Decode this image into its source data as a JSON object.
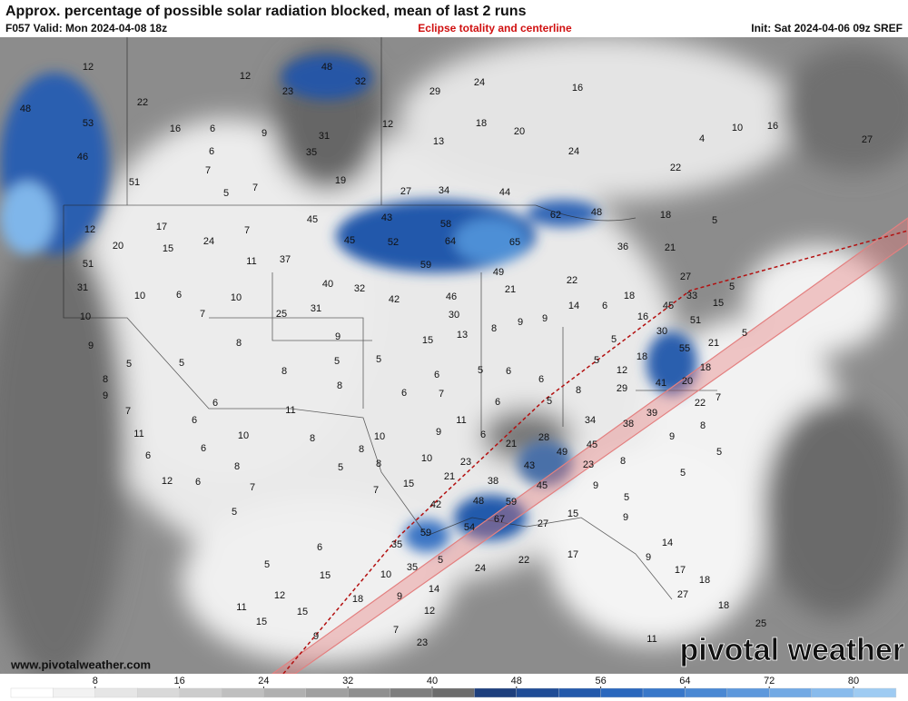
{
  "header": {
    "title": "Approx. percentage of possible solar radiation blocked, mean of last 2 runs",
    "valid": "F057 Valid: Mon 2024-04-08 18z",
    "annotation": "Eclipse totality and centerline",
    "init": "Init: Sat 2024-04-06 09z SREF"
  },
  "map_labels": [
    12,
    12,
    48,
    32,
    23,
    29,
    24,
    16,
    48,
    22,
    53,
    16,
    6,
    9,
    31,
    12,
    18,
    13,
    20,
    10,
    16,
    27,
    4,
    46,
    6,
    35,
    24,
    7,
    51,
    19,
    22,
    5,
    7,
    27,
    34,
    44,
    18,
    62,
    48,
    43,
    45,
    5,
    17,
    12,
    7,
    45,
    52,
    58,
    64,
    65,
    36,
    21,
    24,
    20,
    15,
    11,
    37,
    59,
    51,
    49,
    40,
    32,
    22,
    27,
    5,
    31,
    10,
    6,
    10,
    42,
    21,
    46,
    18,
    33,
    15,
    25,
    31,
    7,
    30,
    14,
    6,
    45,
    51,
    10,
    9,
    15,
    13,
    8,
    9,
    16,
    30,
    55,
    21,
    5,
    9,
    8,
    9,
    5,
    5,
    8,
    5,
    5,
    6,
    5,
    6,
    5,
    5,
    18,
    8,
    8,
    6,
    7,
    6,
    6,
    5,
    12,
    8,
    29,
    41,
    20,
    18,
    22,
    7,
    9,
    11,
    6,
    7,
    6,
    11,
    9,
    6,
    34,
    38,
    39,
    8,
    11,
    10,
    8,
    10,
    21,
    28,
    45,
    49,
    9,
    5,
    6,
    6,
    23,
    10,
    8,
    8,
    5,
    8,
    12,
    6,
    7,
    7,
    15,
    21,
    38,
    43,
    23,
    8,
    5,
    5,
    45,
    9,
    42,
    48,
    59,
    5,
    67,
    54,
    27,
    15,
    9,
    35,
    59,
    5,
    35,
    10,
    24,
    22,
    17,
    14,
    6,
    5,
    15,
    9,
    17,
    12,
    18,
    9,
    14,
    18,
    27,
    15,
    11,
    15,
    12,
    18,
    7,
    25,
    9,
    23,
    11
  ],
  "colorbar": {
    "ticks": [
      8,
      16,
      24,
      32,
      40,
      48,
      56,
      64,
      72,
      80
    ]
  },
  "footer": {
    "website": "www.pivotalweather.com",
    "logo": "pivotal weather"
  }
}
